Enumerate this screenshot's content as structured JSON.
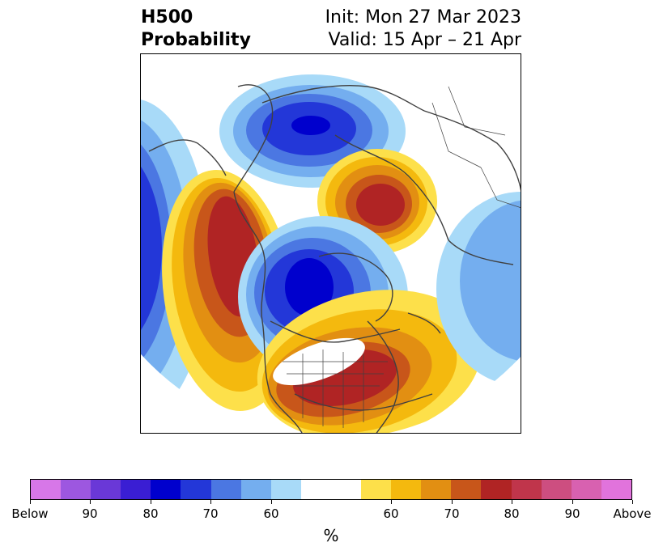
{
  "title": {
    "left_line1": "H500",
    "left_line2": "Probability",
    "right_line1": "Init: Mon 27 Mar 2023",
    "right_line2": "Valid: 15 Apr – 21 Apr"
  },
  "colorbar": {
    "colors": [
      "#d777e8",
      "#9d57e0",
      "#6a38d7",
      "#3a1ed3",
      "#0000cd",
      "#2337d8",
      "#4b77e2",
      "#74aeef",
      "#a8daf8",
      "#ffffff",
      "#ffffff",
      "#fde04a",
      "#f4b90e",
      "#e28f12",
      "#c8561a",
      "#b02424",
      "#c0354b",
      "#cd4e80",
      "#d861b0",
      "#e173dc"
    ],
    "unit": "%",
    "tick_labels": [
      "Below",
      "90",
      "80",
      "70",
      "60",
      "60",
      "70",
      "80",
      "90",
      "Above"
    ],
    "tick_indices": [
      0,
      2,
      4,
      6,
      8,
      12,
      14,
      16,
      18,
      20
    ]
  },
  "map": {
    "projection": "polar stereographic, north pole",
    "fields": [
      {
        "sign": "below",
        "region": "North Atlantic / Iceland",
        "peak_pct": 80
      },
      {
        "sign": "above",
        "region": "Siberian Arctic / Kara Sea",
        "peak_pct": 80
      },
      {
        "sign": "above",
        "region": "Gulf of Alaska / NE Pacific",
        "peak_pct": 80
      },
      {
        "sign": "below",
        "region": "Pacific Ocean / Aleutians",
        "peak_pct": 80
      },
      {
        "sign": "below",
        "region": "Alaska / Bering Strait",
        "peak_pct": 80
      },
      {
        "sign": "above",
        "region": "Southeastern United States",
        "peak_pct": 80
      },
      {
        "sign": "below",
        "region": "Western Pacific / Japan",
        "peak_pct": 70
      }
    ]
  }
}
